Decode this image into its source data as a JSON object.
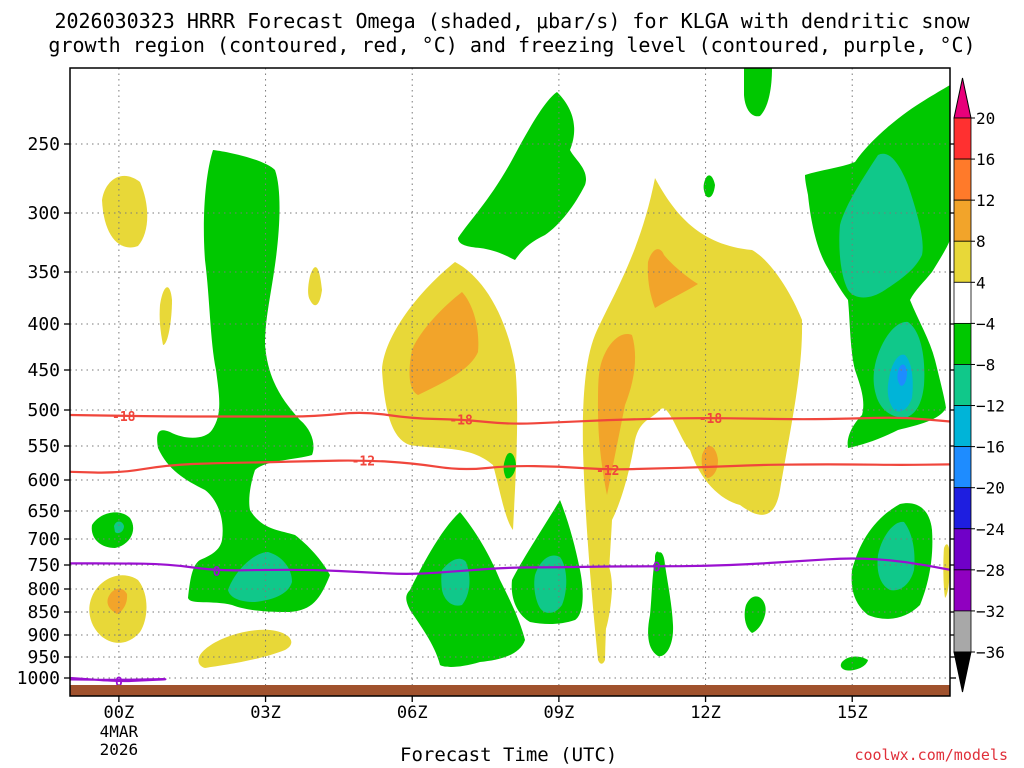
{
  "title_line1": "2026030323 HRRR Forecast Omega (shaded, μbar/s) for KLGA with dendritic snow",
  "title_line2": "growth region (contoured, red, °C) and freezing level (contoured, purple, °C)",
  "x_axis_title": "Forecast Time (UTC)",
  "credit": "coolwx.com/models",
  "chart_data": {
    "type": "heatmap",
    "subtype": "time-height cross section",
    "variable": "Omega (shaded, μbar/s)",
    "station": "KLGA",
    "init": "2026030323",
    "x_ticks": [
      {
        "hour": 0,
        "label": "00Z",
        "sub1": "4MAR",
        "sub2": "2026"
      },
      {
        "hour": 3,
        "label": "03Z"
      },
      {
        "hour": 6,
        "label": "06Z"
      },
      {
        "hour": 9,
        "label": "09Z"
      },
      {
        "hour": 12,
        "label": "12Z"
      },
      {
        "hour": 15,
        "label": "15Z"
      }
    ],
    "xlim_hours": [
      -1,
      17
    ],
    "y_ticks_hpa": [
      250,
      300,
      350,
      400,
      450,
      500,
      550,
      600,
      650,
      700,
      750,
      800,
      850,
      900,
      950,
      1000
    ],
    "ylim_hpa": [
      200,
      1025
    ],
    "colorbar": {
      "labels": [
        "20",
        "16",
        "12",
        "8",
        "4",
        "−4",
        "−8",
        "−12",
        "−16",
        "−20",
        "−24",
        "−28",
        "−32",
        "−36"
      ],
      "colors": [
        "#e8007a",
        "#ff3030",
        "#ff7a2a",
        "#f2a42a",
        "#e8d838",
        "#ffffff",
        "#00c800",
        "#10c88a",
        "#00b4d8",
        "#1e8cff",
        "#1e1ee0",
        "#7000c8",
        "#9000c0",
        "#a8a8a8",
        "#000000"
      ]
    },
    "contours": [
      {
        "name": "dendritic top",
        "value": -18,
        "label": "-18",
        "color": "#f0463c",
        "points": [
          [
            -1,
            507
          ],
          [
            0,
            508
          ],
          [
            1,
            509
          ],
          [
            2,
            509
          ],
          [
            3,
            509
          ],
          [
            4,
            509
          ],
          [
            5,
            502
          ],
          [
            6,
            512
          ],
          [
            7,
            513
          ],
          [
            8,
            520
          ],
          [
            9,
            517
          ],
          [
            10,
            514
          ],
          [
            11,
            512
          ],
          [
            12,
            511
          ],
          [
            13,
            512
          ],
          [
            14,
            513
          ],
          [
            15,
            512
          ],
          [
            16,
            510
          ],
          [
            17,
            516
          ]
        ],
        "label_hours": [
          0.1,
          7.0,
          12.1
        ]
      },
      {
        "name": "dendritic bottom",
        "value": -12,
        "label": "-12",
        "color": "#f0463c",
        "points": [
          [
            -1,
            588
          ],
          [
            0,
            590
          ],
          [
            1,
            578
          ],
          [
            2,
            575
          ],
          [
            3,
            574
          ],
          [
            4,
            572
          ],
          [
            5,
            571
          ],
          [
            6,
            575
          ],
          [
            7,
            586
          ],
          [
            8,
            579
          ],
          [
            9,
            580
          ],
          [
            10,
            585
          ],
          [
            11,
            583
          ],
          [
            12,
            581
          ],
          [
            13,
            578
          ],
          [
            14,
            577
          ],
          [
            15,
            577
          ],
          [
            16,
            578
          ],
          [
            17,
            577
          ]
        ],
        "label_hours": [
          5.0,
          10.0
        ]
      },
      {
        "name": "freezing level",
        "value": 0,
        "label": "0",
        "color": "#9a10d0",
        "points": [
          [
            -1,
            747
          ],
          [
            0,
            747
          ],
          [
            1,
            748
          ],
          [
            2,
            762
          ],
          [
            3,
            760
          ],
          [
            4,
            760
          ],
          [
            5,
            765
          ],
          [
            6,
            770
          ],
          [
            7,
            762
          ],
          [
            8,
            755
          ],
          [
            9,
            755
          ],
          [
            10,
            753
          ],
          [
            11,
            753
          ],
          [
            12,
            752
          ],
          [
            13,
            748
          ],
          [
            14,
            742
          ],
          [
            15,
            736
          ],
          [
            16,
            742
          ],
          [
            17,
            760
          ]
        ],
        "label_hours": [
          2.0,
          11.0
        ]
      },
      {
        "name": "surface freezing level",
        "value": 0,
        "label": "0",
        "color": "#9a10d0",
        "points": [
          [
            -1,
            1000
          ],
          [
            0,
            1007
          ],
          [
            0.5,
            1005
          ],
          [
            1.1,
            1002
          ],
          [
            0.5,
            1003
          ],
          [
            0,
            1004
          ],
          [
            -1,
            1003
          ]
        ],
        "label_hours": [
          0.0
        ]
      }
    ],
    "shaded_regions": [
      {
        "band": "4 to 8",
        "color": "#e8d838",
        "center_hour": 0.0,
        "center_hpa": 300
      },
      {
        "band": "4 to 8",
        "color": "#e8d838",
        "center_hour": 7.5,
        "center_hpa": 430
      },
      {
        "band": "4 to 8",
        "color": "#e8d838",
        "center_hour": 10.5,
        "center_hpa": 450
      },
      {
        "band": "4 to 8",
        "color": "#e8d838",
        "center_hour": 12.5,
        "center_hpa": 380
      },
      {
        "band": "4 to 8",
        "color": "#e8d838",
        "center_hour": 0.0,
        "center_hpa": 830
      },
      {
        "band": "4 to 8",
        "color": "#e8d838",
        "center_hour": 2.6,
        "center_hpa": 940
      },
      {
        "band": "8 to 12",
        "color": "#f2a42a",
        "center_hour": 7.2,
        "center_hpa": 420
      },
      {
        "band": "8 to 12",
        "color": "#f2a42a",
        "center_hour": 10.4,
        "center_hpa": 440
      },
      {
        "band": "8 to 12",
        "color": "#f2a42a",
        "center_hour": 11.5,
        "center_hpa": 350
      },
      {
        "band": "8 to 12",
        "color": "#f2a42a",
        "center_hour": 0.0,
        "center_hpa": 815
      },
      {
        "band": "-4 to -8",
        "color": "#00c800",
        "center_hour": 3.0,
        "center_hpa": 380
      },
      {
        "band": "-4 to -8",
        "color": "#00c800",
        "center_hour": 8.5,
        "center_hpa": 270
      },
      {
        "band": "-4 to -8",
        "color": "#00c800",
        "center_hour": 3.2,
        "center_hpa": 720
      },
      {
        "band": "-4 to -8",
        "color": "#00c800",
        "center_hour": 7.2,
        "center_hpa": 800
      },
      {
        "band": "-4 to -8",
        "color": "#00c800",
        "center_hour": 9.3,
        "center_hpa": 780
      },
      {
        "band": "-4 to -8",
        "color": "#00c800",
        "center_hour": 16.0,
        "center_hpa": 370
      },
      {
        "band": "-4 to -8",
        "color": "#00c800",
        "center_hour": 15.9,
        "center_hpa": 760
      },
      {
        "band": "-8 to -12",
        "color": "#10c88a",
        "center_hour": 2.9,
        "center_hpa": 780
      },
      {
        "band": "-8 to -12",
        "color": "#10c88a",
        "center_hour": 15.8,
        "center_hpa": 320
      },
      {
        "band": "-8 to -12",
        "color": "#10c88a",
        "center_hour": 16.0,
        "center_hpa": 450
      },
      {
        "band": "-12 to -16",
        "color": "#00b4d8",
        "center_hour": 16.0,
        "center_hpa": 450
      }
    ],
    "ground_color": "#a0522d"
  }
}
